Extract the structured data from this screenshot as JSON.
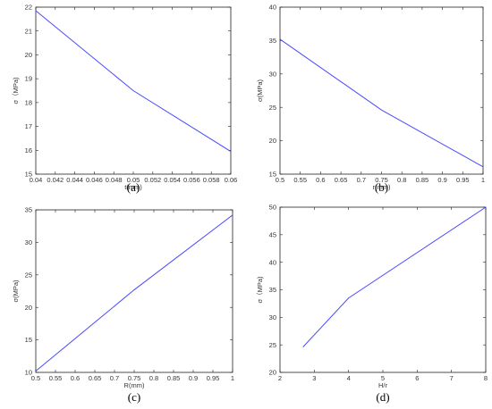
{
  "chart_data": [
    {
      "type": "line",
      "panel": "(a)",
      "xlabel": "t(mm)",
      "ylabel": "σ（MPa)",
      "xlim": [
        0.04,
        0.06
      ],
      "ylim": [
        15,
        22
      ],
      "xticks": [
        "0.04",
        "0.042",
        "0.044",
        "0.046",
        "0.048",
        "0.05",
        "0.052",
        "0.054",
        "0.056",
        "0.058",
        "0.06"
      ],
      "yticks": [
        "15",
        "16",
        "17",
        "18",
        "19",
        "20",
        "21",
        "22"
      ],
      "series": [
        {
          "x": [
            0.04,
            0.05,
            0.06
          ],
          "y": [
            21.85,
            18.5,
            15.95
          ]
        }
      ],
      "color": "#4a4aff"
    },
    {
      "type": "line",
      "panel": "(b)",
      "xlabel": "r(mm)",
      "ylabel": "σ(MPa)",
      "xlim": [
        0.5,
        1
      ],
      "ylim": [
        15,
        40
      ],
      "xticks": [
        "0.5",
        "0.55",
        "0.6",
        "0.65",
        "0.7",
        "0.75",
        "0.8",
        "0.85",
        "0.9",
        "0.95",
        "1"
      ],
      "yticks": [
        "15",
        "20",
        "25",
        "30",
        "35",
        "40"
      ],
      "series": [
        {
          "x": [
            0.5,
            0.75,
            1.0
          ],
          "y": [
            35.2,
            24.6,
            16.1
          ]
        }
      ],
      "color": "#4a4aff"
    },
    {
      "type": "line",
      "panel": "(c)",
      "xlabel": "R(mm)",
      "ylabel": "σ(MPa)",
      "xlim": [
        0.5,
        1
      ],
      "ylim": [
        10,
        35
      ],
      "xticks": [
        "0.5",
        "0.55",
        "0.6",
        "0.65",
        "0.7",
        "0.75",
        "0.8",
        "0.85",
        "0.9",
        "0.95",
        "1"
      ],
      "yticks": [
        "10",
        "15",
        "20",
        "25",
        "30",
        "35"
      ],
      "series": [
        {
          "x": [
            0.5,
            0.75,
            1.0
          ],
          "y": [
            10.2,
            22.7,
            34.2
          ]
        }
      ],
      "color": "#4a4aff"
    },
    {
      "type": "line",
      "panel": "(d)",
      "xlabel": "H/r",
      "ylabel": "σ（MPa)",
      "xlim": [
        2,
        8
      ],
      "ylim": [
        20,
        50
      ],
      "xticks": [
        "2",
        "3",
        "4",
        "5",
        "6",
        "7",
        "8"
      ],
      "yticks": [
        "20",
        "25",
        "30",
        "35",
        "40",
        "45",
        "50"
      ],
      "series": [
        {
          "x": [
            2.67,
            4.0,
            8.0
          ],
          "y": [
            24.6,
            33.5,
            50.0
          ]
        }
      ],
      "color": "#4a4aff"
    }
  ]
}
